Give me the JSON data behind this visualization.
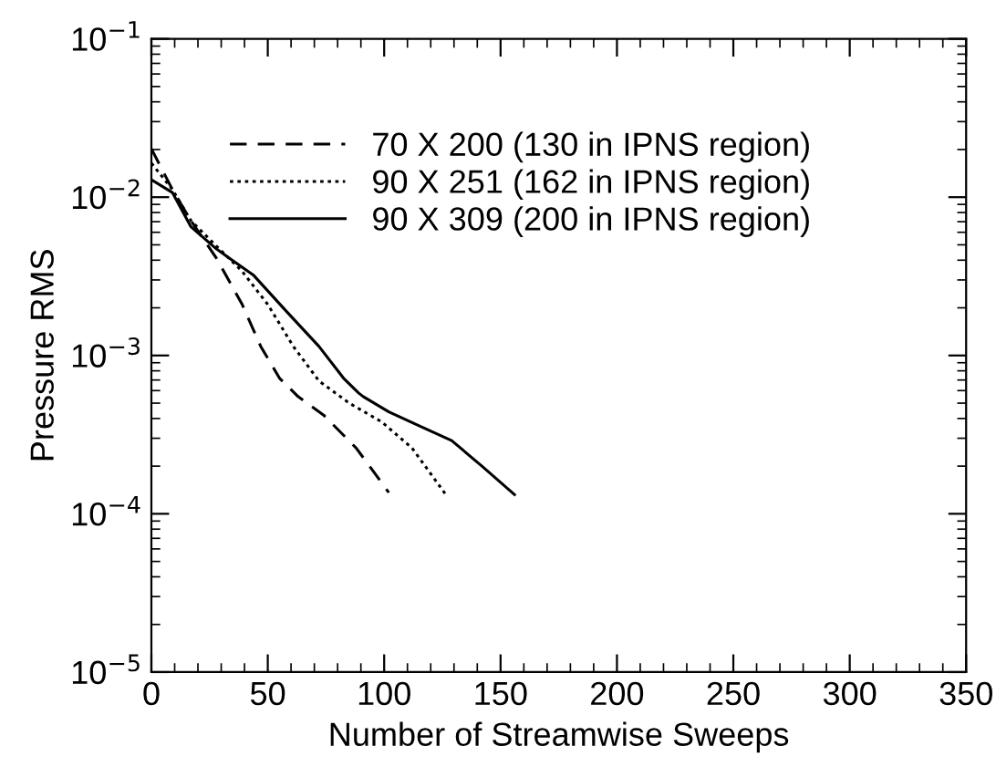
{
  "chart_data": {
    "type": "line",
    "xlabel": "Number of Streamwise Sweeps",
    "ylabel": "Pressure RMS",
    "log": "y",
    "xlim": [
      0,
      350
    ],
    "xticks": [
      0,
      50,
      100,
      150,
      200,
      250,
      300,
      350
    ],
    "ylim": [
      1e-05,
      0.1
    ],
    "yticks": [
      {
        "value": 1e-05,
        "label": "10$^{−5}$"
      },
      {
        "value": 0.0001,
        "label": "10$^{−4}$"
      },
      {
        "value": 0.001,
        "label": "10$^{−3}$"
      },
      {
        "value": 0.01,
        "label": "10$^{−2}$"
      },
      {
        "value": 0.1,
        "label": "10$^{−1}$"
      }
    ],
    "legend": "top left",
    "grid": false,
    "series": [
      {
        "name": "70 X 200 (130 in IPNS region)",
        "color": "#000000",
        "line_style": "dashed",
        "x": [
          0,
          9,
          17,
          28,
          39,
          47,
          55,
          63,
          74,
          88,
          96,
          102
        ],
        "values": [
          0.0202,
          0.0112,
          0.0071,
          0.0041,
          0.0021,
          0.00114,
          0.00072,
          0.00055,
          0.00042,
          0.00026,
          0.00018,
          0.000136
        ]
      },
      {
        "name": "90 X 251 (162 in IPNS region)",
        "color": "#000000",
        "line_style": "dotted",
        "x": [
          0,
          9,
          17,
          28,
          39,
          50,
          61,
          72,
          85,
          99,
          112,
          127
        ],
        "values": [
          0.0164,
          0.0112,
          0.0071,
          0.0049,
          0.0034,
          0.0021,
          0.00114,
          0.00069,
          0.0005,
          0.00038,
          0.00026,
          0.000129
        ]
      },
      {
        "name": "90 X 309 (200 in IPNS region)",
        "color": "#000000",
        "line_style": "solid",
        "x": [
          0,
          9,
          17,
          28,
          44,
          58,
          72,
          82.5,
          89,
          91,
          102,
          115,
          129,
          142,
          156
        ],
        "values": [
          0.0129,
          0.0107,
          0.0065,
          0.0047,
          0.0032,
          0.0019,
          0.00114,
          0.00072,
          0.00058,
          0.00055,
          0.00044,
          0.00036,
          0.00029,
          0.0002,
          0.000132
        ]
      }
    ]
  }
}
